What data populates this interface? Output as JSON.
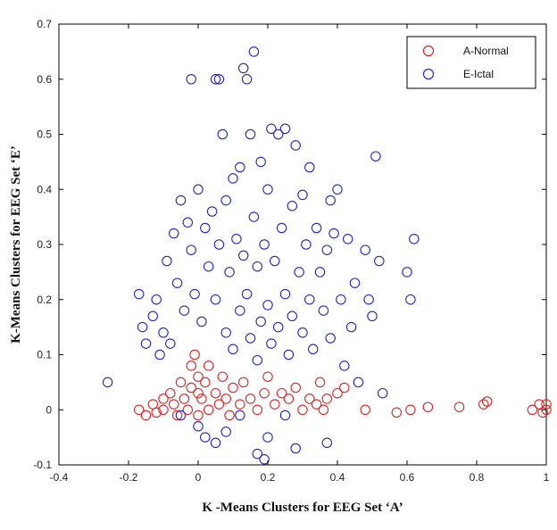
{
  "chart_data": {
    "type": "scatter",
    "title": "",
    "xlabel": "K -Means Clusters for EEG Set ‘A’",
    "ylabel": "K-Means Clusters for EEG Set ‘E’",
    "xlim": [
      -0.4,
      1.0
    ],
    "ylim": [
      -0.1,
      0.7
    ],
    "x_ticks": [
      "-0.4",
      "-0.2",
      "0",
      "0.2",
      "0.4",
      "0.6",
      "0.8",
      "1"
    ],
    "y_ticks": [
      "-0.1",
      "0",
      "0.1",
      "0.2",
      "0.3",
      "0.4",
      "0.5",
      "0.6",
      "0.7"
    ],
    "grid": false,
    "legend_position": "top-right",
    "marker": "open-circle",
    "series": [
      {
        "name": "A-Normal",
        "color": "#dd2222",
        "points": [
          [
            -0.17,
            0.0
          ],
          [
            -0.15,
            -0.01
          ],
          [
            -0.13,
            0.01
          ],
          [
            -0.12,
            -0.005
          ],
          [
            -0.1,
            0.02
          ],
          [
            -0.1,
            0.0
          ],
          [
            -0.08,
            0.03
          ],
          [
            -0.07,
            0.01
          ],
          [
            -0.06,
            -0.01
          ],
          [
            -0.05,
            0.05
          ],
          [
            -0.04,
            0.02
          ],
          [
            -0.03,
            0.0
          ],
          [
            -0.02,
            0.08
          ],
          [
            -0.02,
            0.04
          ],
          [
            -0.01,
            0.1
          ],
          [
            0.0,
            0.06
          ],
          [
            0.0,
            0.03
          ],
          [
            0.0,
            -0.01
          ],
          [
            0.01,
            0.02
          ],
          [
            0.02,
            0.05
          ],
          [
            0.03,
            0.08
          ],
          [
            0.03,
            0.0
          ],
          [
            0.05,
            0.03
          ],
          [
            0.06,
            0.01
          ],
          [
            0.07,
            0.06
          ],
          [
            0.08,
            0.02
          ],
          [
            0.09,
            -0.01
          ],
          [
            0.1,
            0.04
          ],
          [
            0.12,
            0.01
          ],
          [
            0.13,
            0.05
          ],
          [
            0.15,
            0.02
          ],
          [
            0.17,
            0.0
          ],
          [
            0.19,
            0.03
          ],
          [
            0.2,
            0.06
          ],
          [
            0.22,
            0.01
          ],
          [
            0.24,
            0.03
          ],
          [
            0.26,
            0.02
          ],
          [
            0.28,
            0.04
          ],
          [
            0.3,
            0.0
          ],
          [
            0.32,
            0.02
          ],
          [
            0.34,
            0.01
          ],
          [
            0.35,
            0.05
          ],
          [
            0.36,
            0.0
          ],
          [
            0.37,
            0.02
          ],
          [
            0.4,
            0.03
          ],
          [
            0.42,
            0.04
          ],
          [
            0.48,
            0.0
          ],
          [
            0.57,
            -0.005
          ],
          [
            0.61,
            0.0
          ],
          [
            0.66,
            0.005
          ],
          [
            0.75,
            0.005
          ],
          [
            0.82,
            0.01
          ],
          [
            0.83,
            0.015
          ],
          [
            0.96,
            0.0
          ],
          [
            0.98,
            0.01
          ],
          [
            0.99,
            -0.005
          ],
          [
            1.0,
            0.0
          ],
          [
            1.0,
            0.01
          ]
        ]
      },
      {
        "name": "E-Ictal",
        "color": "#2222cc",
        "points": [
          [
            -0.26,
            0.05
          ],
          [
            -0.17,
            0.21
          ],
          [
            -0.16,
            0.15
          ],
          [
            -0.15,
            0.12
          ],
          [
            -0.13,
            0.17
          ],
          [
            -0.12,
            0.2
          ],
          [
            -0.11,
            0.1
          ],
          [
            -0.1,
            0.14
          ],
          [
            -0.09,
            0.27
          ],
          [
            -0.08,
            0.12
          ],
          [
            -0.07,
            0.32
          ],
          [
            -0.06,
            0.23
          ],
          [
            -0.05,
            0.38
          ],
          [
            -0.04,
            0.18
          ],
          [
            -0.03,
            0.34
          ],
          [
            -0.02,
            0.29
          ],
          [
            -0.02,
            0.6
          ],
          [
            -0.01,
            0.21
          ],
          [
            0.0,
            0.4
          ],
          [
            0.01,
            0.16
          ],
          [
            0.02,
            0.33
          ],
          [
            0.03,
            0.26
          ],
          [
            0.04,
            0.36
          ],
          [
            0.05,
            0.6
          ],
          [
            0.05,
            0.2
          ],
          [
            0.06,
            0.3
          ],
          [
            0.06,
            0.6
          ],
          [
            0.07,
            0.5
          ],
          [
            0.08,
            0.14
          ],
          [
            0.08,
            0.38
          ],
          [
            0.09,
            0.25
          ],
          [
            0.1,
            0.42
          ],
          [
            0.1,
            0.11
          ],
          [
            0.11,
            0.31
          ],
          [
            0.12,
            0.44
          ],
          [
            0.12,
            0.18
          ],
          [
            0.13,
            0.62
          ],
          [
            0.13,
            0.28
          ],
          [
            0.14,
            0.6
          ],
          [
            0.14,
            0.21
          ],
          [
            0.15,
            0.5
          ],
          [
            0.15,
            0.13
          ],
          [
            0.16,
            0.65
          ],
          [
            0.16,
            0.35
          ],
          [
            0.17,
            0.26
          ],
          [
            0.17,
            0.09
          ],
          [
            0.18,
            0.16
          ],
          [
            0.18,
            0.45
          ],
          [
            0.19,
            0.3
          ],
          [
            0.2,
            0.19
          ],
          [
            0.2,
            0.4
          ],
          [
            0.21,
            0.12
          ],
          [
            0.21,
            0.51
          ],
          [
            0.22,
            0.27
          ],
          [
            0.23,
            0.5
          ],
          [
            0.23,
            0.15
          ],
          [
            0.24,
            0.33
          ],
          [
            0.25,
            0.51
          ],
          [
            0.25,
            0.21
          ],
          [
            0.26,
            0.1
          ],
          [
            0.27,
            0.37
          ],
          [
            0.27,
            0.17
          ],
          [
            0.28,
            0.48
          ],
          [
            0.29,
            0.25
          ],
          [
            0.3,
            0.14
          ],
          [
            0.3,
            0.39
          ],
          [
            0.31,
            0.3
          ],
          [
            0.32,
            0.44
          ],
          [
            0.32,
            0.2
          ],
          [
            0.33,
            0.11
          ],
          [
            0.34,
            0.33
          ],
          [
            0.35,
            0.25
          ],
          [
            0.36,
            0.18
          ],
          [
            0.37,
            0.29
          ],
          [
            0.38,
            0.38
          ],
          [
            0.38,
            0.13
          ],
          [
            0.39,
            0.32
          ],
          [
            0.4,
            0.4
          ],
          [
            0.41,
            0.2
          ],
          [
            0.42,
            0.08
          ],
          [
            0.43,
            0.31
          ],
          [
            0.44,
            0.15
          ],
          [
            0.45,
            0.23
          ],
          [
            0.46,
            0.05
          ],
          [
            0.48,
            0.29
          ],
          [
            0.49,
            0.2
          ],
          [
            0.5,
            0.17
          ],
          [
            0.51,
            0.46
          ],
          [
            0.52,
            0.27
          ],
          [
            0.53,
            0.03
          ],
          [
            0.6,
            0.25
          ],
          [
            0.61,
            0.2
          ],
          [
            0.62,
            0.31
          ],
          [
            -0.05,
            -0.01
          ],
          [
            0.0,
            -0.03
          ],
          [
            0.02,
            -0.05
          ],
          [
            0.05,
            -0.06
          ],
          [
            0.08,
            -0.04
          ],
          [
            0.12,
            -0.01
          ],
          [
            0.17,
            -0.08
          ],
          [
            0.19,
            -0.09
          ],
          [
            0.2,
            -0.05
          ],
          [
            0.25,
            -0.01
          ],
          [
            0.28,
            -0.07
          ],
          [
            0.37,
            -0.06
          ]
        ]
      }
    ]
  }
}
